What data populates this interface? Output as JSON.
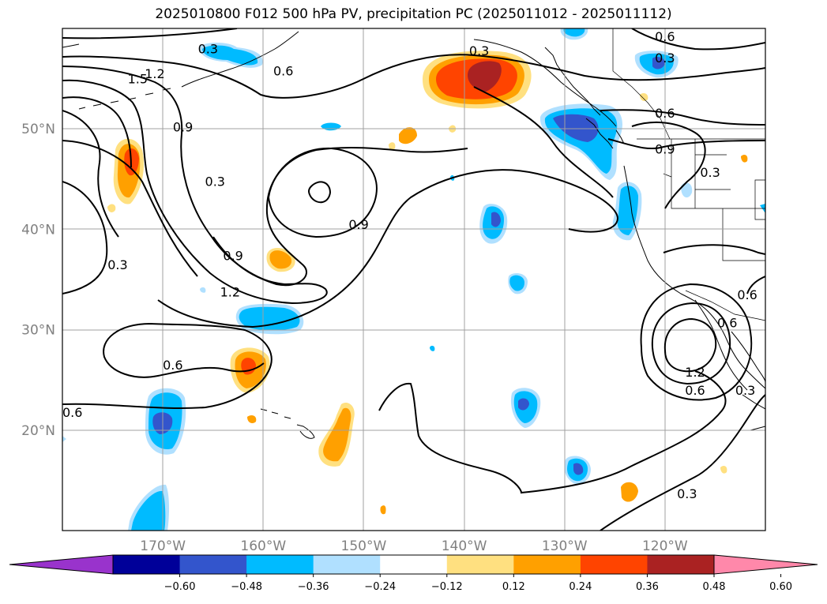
{
  "title": "2025010800 F012 500 hPa PV, precipitation PC (2025011012 - 2025011112)",
  "map": {
    "lon_range": [
      -180,
      -110
    ],
    "lat_range": [
      10,
      60
    ],
    "lon_ticks": [
      {
        "lon": -170,
        "label": "170°W"
      },
      {
        "lon": -160,
        "label": "160°W"
      },
      {
        "lon": -150,
        "label": "150°W"
      },
      {
        "lon": -140,
        "label": "140°W"
      },
      {
        "lon": -130,
        "label": "130°W"
      },
      {
        "lon": -120,
        "label": "120°W"
      }
    ],
    "lat_ticks": [
      {
        "lat": 20,
        "label": "20°N"
      },
      {
        "lat": 30,
        "label": "30°N"
      },
      {
        "lat": 40,
        "label": "40°N"
      },
      {
        "lat": 50,
        "label": "50°N"
      }
    ],
    "grid": true,
    "contour_labels": [
      {
        "text": "0.6",
        "lon": -179.0,
        "lat": 21.8
      },
      {
        "text": "0.3",
        "lon": -174.5,
        "lat": 36.5
      },
      {
        "text": "1.5",
        "lon": -172.5,
        "lat": 55.0
      },
      {
        "text": "1.2",
        "lon": -170.8,
        "lat": 55.5
      },
      {
        "text": "0.3",
        "lon": -165.5,
        "lat": 58.0
      },
      {
        "text": "0.9",
        "lon": -168.0,
        "lat": 50.2
      },
      {
        "text": "0.6",
        "lon": -158.0,
        "lat": 55.8
      },
      {
        "text": "0.3",
        "lon": -164.8,
        "lat": 44.8
      },
      {
        "text": "0.9",
        "lon": -150.5,
        "lat": 40.5
      },
      {
        "text": "0.9",
        "lon": -163.0,
        "lat": 37.4
      },
      {
        "text": "1.2",
        "lon": -163.3,
        "lat": 33.8
      },
      {
        "text": "0.6",
        "lon": -169.0,
        "lat": 26.5
      },
      {
        "text": "0.3",
        "lon": -138.5,
        "lat": 57.8
      },
      {
        "text": "0.6",
        "lon": -120.0,
        "lat": 59.2
      },
      {
        "text": "0.3",
        "lon": -120.0,
        "lat": 57.1
      },
      {
        "text": "0.6",
        "lon": -120.0,
        "lat": 51.6
      },
      {
        "text": "0.9",
        "lon": -120.0,
        "lat": 48.0
      },
      {
        "text": "0.3",
        "lon": -115.5,
        "lat": 45.7
      },
      {
        "text": "1.2",
        "lon": -117.0,
        "lat": 25.8
      },
      {
        "text": "0.6",
        "lon": -117.0,
        "lat": 24.0
      },
      {
        "text": "0.6",
        "lon": -111.8,
        "lat": 33.5
      },
      {
        "text": "0.6",
        "lon": -113.8,
        "lat": 30.7
      },
      {
        "text": "0.3",
        "lon": -112.0,
        "lat": 24.0
      },
      {
        "text": "0.3",
        "lon": -117.8,
        "lat": 13.7
      }
    ]
  },
  "colorbar": {
    "colors": [
      "#9933cc",
      "#000099",
      "#3355cc",
      "#00bbff",
      "#b0e0ff",
      "#ffffff",
      "#ffe080",
      "#ffa000",
      "#ff4400",
      "#aa2222",
      "#ff88aa"
    ],
    "tick_labels": [
      "−0.60",
      "−0.48",
      "−0.36",
      "−0.24",
      "−0.12",
      "0.12",
      "0.24",
      "0.36",
      "0.48",
      "0.60"
    ],
    "extend": "both"
  }
}
